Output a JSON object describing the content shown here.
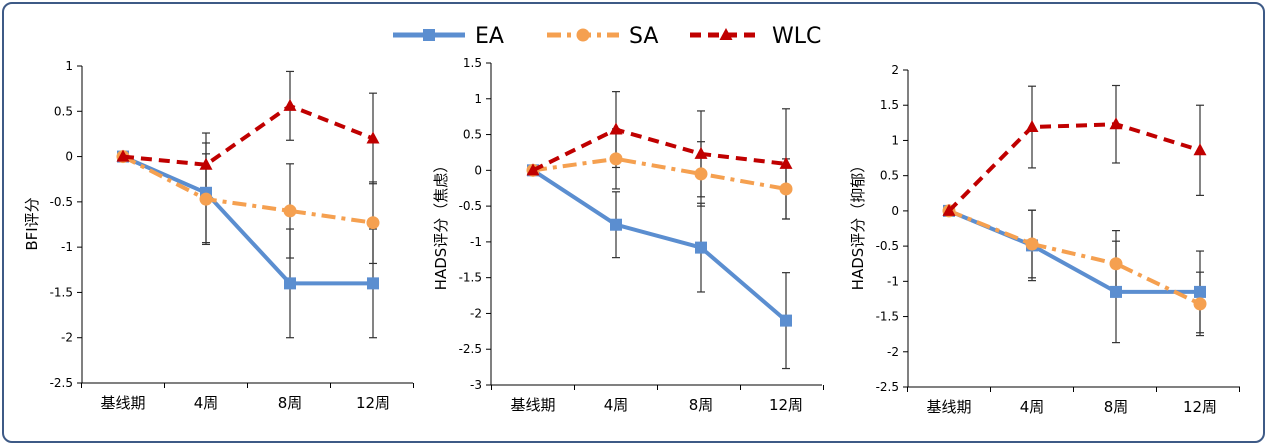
{
  "legend": {
    "position": "top-center",
    "entries": [
      {
        "label": "EA",
        "color": "#5b8ed0",
        "dash": "solid",
        "marker": "square"
      },
      {
        "label": "SA",
        "color": "#f5a050",
        "dash": "dashdot",
        "marker": "circle"
      },
      {
        "label": "WLC",
        "color": "#c00000",
        "dash": "dashed",
        "marker": "triangle"
      }
    ]
  },
  "chart_data": [
    {
      "type": "line",
      "ylabel": "BFI评分",
      "ylim": [
        -2.5,
        1
      ],
      "yticks": [
        "1",
        "0.5",
        "0",
        "-0.5",
        "-1",
        "-1.5",
        "-2",
        "-2.5"
      ],
      "ytick_values": [
        1,
        0.5,
        0,
        -0.5,
        -1,
        -1.5,
        -2,
        -2.5
      ],
      "categories": [
        "基线期",
        "4周",
        "8周",
        "12周"
      ],
      "grid": false,
      "series": [
        {
          "name": "EA",
          "values": [
            0,
            -0.4,
            -1.4,
            -1.4
          ],
          "error": [
            0,
            0.55,
            0.6,
            0.6
          ]
        },
        {
          "name": "SA",
          "values": [
            0,
            -0.47,
            -0.6,
            -0.73
          ],
          "error": [
            0,
            0.5,
            0.52,
            0.45
          ]
        },
        {
          "name": "WLC",
          "values": [
            0,
            -0.09,
            0.56,
            0.2
          ],
          "error": [
            0,
            0.35,
            0.38,
            0.5
          ]
        }
      ]
    },
    {
      "type": "line",
      "ylabel": "HADS评分（焦虑）",
      "ylim": [
        -3,
        1.5
      ],
      "yticks": [
        "1.5",
        "1",
        "0.5",
        "0",
        "-0.5",
        "-1",
        "-1.5",
        "-2",
        "-2.5",
        "-3"
      ],
      "ytick_values": [
        1.5,
        1,
        0.5,
        0,
        -0.5,
        -1,
        -1.5,
        -2,
        -2.5,
        -3
      ],
      "categories": [
        "基线期",
        "4周",
        "8周",
        "12周"
      ],
      "grid": false,
      "series": [
        {
          "name": "EA",
          "values": [
            0,
            -0.76,
            -1.08,
            -2.1
          ],
          "error": [
            0,
            0.46,
            0.62,
            0.67
          ]
        },
        {
          "name": "SA",
          "values": [
            0,
            0.16,
            -0.05,
            -0.26
          ],
          "error": [
            0,
            0.42,
            0.45,
            0.42
          ]
        },
        {
          "name": "WLC",
          "values": [
            0,
            0.57,
            0.23,
            0.09
          ],
          "error": [
            0,
            0.53,
            0.6,
            0.77
          ]
        }
      ]
    },
    {
      "type": "line",
      "ylabel": "HADS评分（抑郁）",
      "ylim": [
        -2.5,
        2
      ],
      "yticks": [
        "2",
        "1.5",
        "1",
        "0.5",
        "0",
        "-0.5",
        "-1",
        "-1.5",
        "-2",
        "-2.5"
      ],
      "ytick_values": [
        2,
        1.5,
        1,
        0.5,
        0,
        -0.5,
        -1,
        -1.5,
        -2,
        -2.5
      ],
      "categories": [
        "基线期",
        "4周",
        "8周",
        "12周"
      ],
      "grid": false,
      "series": [
        {
          "name": "EA",
          "values": [
            0,
            -0.49,
            -1.15,
            -1.15
          ],
          "error": [
            0,
            0.5,
            0.72,
            0.58
          ]
        },
        {
          "name": "SA",
          "values": [
            0,
            -0.47,
            -0.75,
            -1.32
          ],
          "error": [
            0,
            0.48,
            0.47,
            0.45
          ]
        },
        {
          "name": "WLC",
          "values": [
            0,
            1.19,
            1.23,
            0.86
          ],
          "error": [
            0,
            0.58,
            0.55,
            0.64
          ]
        }
      ]
    }
  ]
}
